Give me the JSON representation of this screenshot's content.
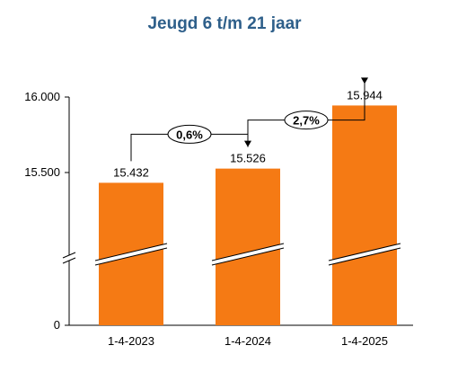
{
  "chart_data": {
    "type": "bar",
    "title": "Jeugd 6 t/m 21 jaar",
    "categories": [
      "1-4-2023",
      "1-4-2024",
      "1-4-2025"
    ],
    "values": [
      15432,
      15526,
      15944
    ],
    "value_labels": [
      "15.432",
      "15.526",
      "15.944"
    ],
    "ylim": [
      0,
      16000
    ],
    "y_axis_break": true,
    "y_ticks": [
      {
        "value": 0,
        "label": "0"
      },
      {
        "value": 15500,
        "label": "15.500"
      },
      {
        "value": 16000,
        "label": "16.000"
      }
    ],
    "changes": [
      {
        "from": 0,
        "to": 1,
        "label": "0,6%"
      },
      {
        "from": 1,
        "to": 2,
        "label": "2,7%"
      }
    ],
    "grid": false,
    "legend": "none",
    "colors": {
      "bar": "#F57A14",
      "title": "#2E5F8A",
      "axis": "#000000"
    }
  }
}
